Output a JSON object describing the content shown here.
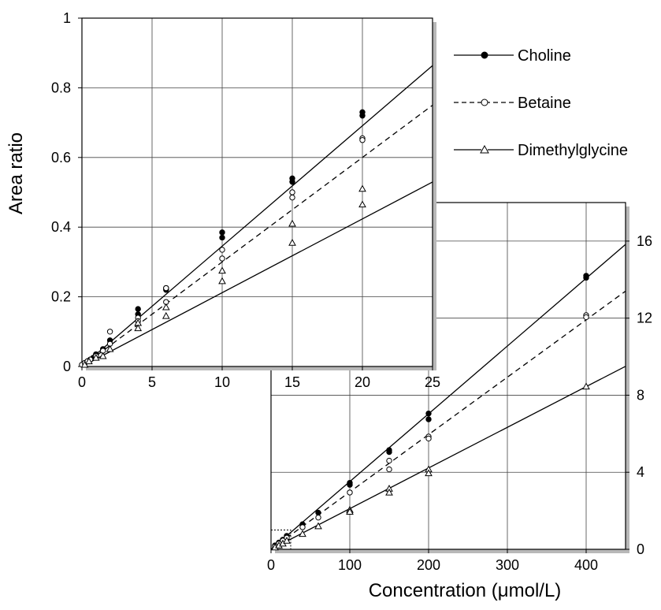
{
  "chart_data": [
    {
      "type": "scatter",
      "panel": "inset",
      "xlim": [
        0,
        25
      ],
      "ylim": [
        0,
        1
      ],
      "x_ticks": [
        0,
        5,
        10,
        15,
        20,
        25
      ],
      "y_ticks": [
        0,
        0.2,
        0.4,
        0.6,
        0.8,
        1
      ],
      "ylabel": "Area ratio",
      "grid": true,
      "series": [
        {
          "name": "Choline",
          "marker": "filled-circle",
          "line_style": "solid",
          "fit_slope": 0.03455,
          "x": [
            0.2,
            0.4,
            0.6,
            0.8,
            1,
            1.5,
            2,
            4,
            4,
            6,
            6,
            10,
            10,
            15,
            15,
            20,
            20
          ],
          "y": [
            0.01,
            0.015,
            0.02,
            0.025,
            0.035,
            0.05,
            0.075,
            0.165,
            0.15,
            0.225,
            0.22,
            0.385,
            0.37,
            0.54,
            0.53,
            0.73,
            0.72
          ]
        },
        {
          "name": "Betaine",
          "marker": "open-circle",
          "line_style": "dashed",
          "fit_slope": 0.03,
          "x": [
            0,
            0.2,
            0.4,
            0.6,
            1,
            1.5,
            2,
            2,
            4,
            4,
            6,
            6,
            10,
            10,
            15,
            15,
            20,
            20
          ],
          "y": [
            0.005,
            0.01,
            0.015,
            0.02,
            0.03,
            0.045,
            0.1,
            0.065,
            0.14,
            0.13,
            0.225,
            0.185,
            0.335,
            0.31,
            0.5,
            0.485,
            0.655,
            0.65
          ]
        },
        {
          "name": "Dimethylglycine",
          "marker": "open-triangle",
          "line_style": "solid",
          "fit_slope": 0.02118,
          "x": [
            0.2,
            0.5,
            1,
            1.5,
            2,
            4,
            4,
            6,
            6,
            10,
            10,
            15,
            15,
            20,
            20
          ],
          "y": [
            0.005,
            0.015,
            0.025,
            0.03,
            0.05,
            0.125,
            0.11,
            0.17,
            0.145,
            0.275,
            0.245,
            0.41,
            0.355,
            0.51,
            0.465
          ]
        }
      ]
    },
    {
      "type": "scatter",
      "panel": "main",
      "xlim": [
        0,
        450
      ],
      "ylim": [
        0,
        18
      ],
      "x_ticks": [
        0,
        100,
        200,
        300,
        400
      ],
      "y_ticks": [
        0,
        4,
        8,
        12,
        16
      ],
      "xlabel": "Concentration (μmol/L)",
      "grid": true,
      "series": [
        {
          "name": "Choline",
          "marker": "filled-circle",
          "line_style": "solid",
          "fit_slope": 0.03517,
          "x": [
            5,
            10,
            15,
            20,
            40,
            60,
            100,
            100,
            150,
            150,
            200,
            200,
            400,
            400
          ],
          "y": [
            0.2,
            0.35,
            0.5,
            0.7,
            1.3,
            1.9,
            3.45,
            3.35,
            5.15,
            5.05,
            7.05,
            6.75,
            14.2,
            14.1
          ]
        },
        {
          "name": "Betaine",
          "marker": "open-circle",
          "line_style": "dashed",
          "fit_slope": 0.02978,
          "x": [
            5,
            10,
            15,
            20,
            40,
            60,
            100,
            150,
            150,
            200,
            200,
            400,
            400
          ],
          "y": [
            0.15,
            0.3,
            0.45,
            0.6,
            1.15,
            1.65,
            2.95,
            4.6,
            4.15,
            5.85,
            5.75,
            12.15,
            12.05
          ]
        },
        {
          "name": "Dimethylglycine",
          "marker": "open-triangle",
          "line_style": "solid",
          "fit_slope": 0.02111,
          "x": [
            5,
            10,
            15,
            20,
            40,
            60,
            100,
            100,
            150,
            150,
            200,
            200,
            400
          ],
          "y": [
            0.1,
            0.2,
            0.3,
            0.45,
            0.8,
            1.2,
            2.05,
            1.95,
            3.15,
            2.95,
            4.15,
            3.95,
            8.45
          ]
        }
      ]
    }
  ],
  "legend": {
    "placement": "top-right",
    "items": [
      "Choline",
      "Betaine",
      "Dimethylglycine"
    ]
  }
}
